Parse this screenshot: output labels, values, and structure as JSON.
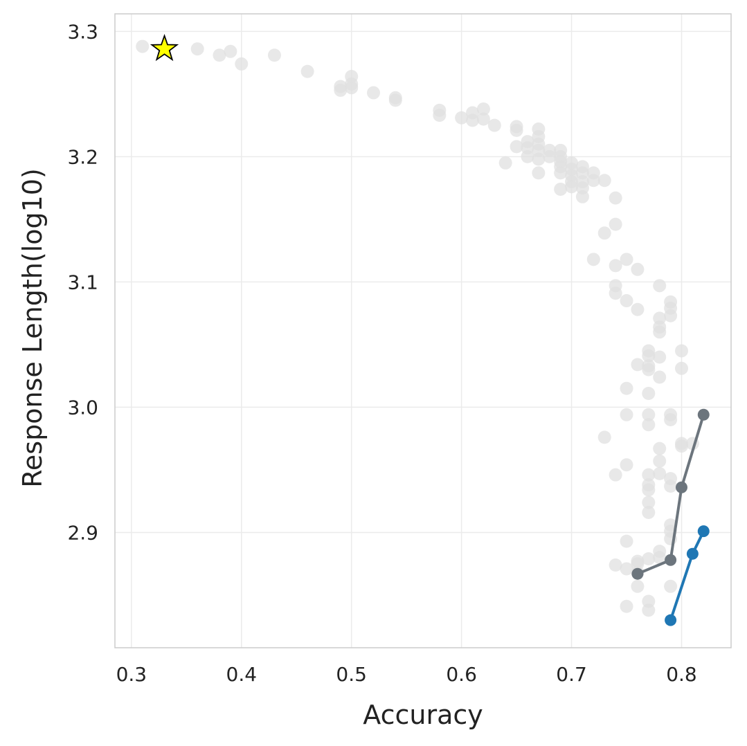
{
  "chart_data": {
    "type": "scatter",
    "title": "",
    "xlabel": "Accuracy",
    "ylabel": "Response Length(log10)",
    "xlim": [
      0.285,
      0.845
    ],
    "ylim": [
      2.808,
      3.314
    ],
    "xticks": [
      0.3,
      0.4,
      0.5,
      0.6,
      0.7,
      0.8
    ],
    "yticks": [
      2.9,
      3.0,
      3.1,
      3.2,
      3.3
    ],
    "xtick_labels": [
      "0.3",
      "0.4",
      "0.5",
      "0.6",
      "0.7",
      "0.8"
    ],
    "ytick_labels": [
      "2.9",
      "3.0",
      "3.1",
      "3.2",
      "3.3"
    ],
    "grid": true,
    "legend": "none",
    "background_points": {
      "color": "#e0e0e0",
      "points": [
        [
          0.31,
          3.288
        ],
        [
          0.36,
          3.286
        ],
        [
          0.38,
          3.281
        ],
        [
          0.39,
          3.284
        ],
        [
          0.4,
          3.274
        ],
        [
          0.43,
          3.281
        ],
        [
          0.46,
          3.268
        ],
        [
          0.49,
          3.256
        ],
        [
          0.49,
          3.253
        ],
        [
          0.5,
          3.264
        ],
        [
          0.5,
          3.255
        ],
        [
          0.5,
          3.258
        ],
        [
          0.52,
          3.251
        ],
        [
          0.54,
          3.247
        ],
        [
          0.54,
          3.245
        ],
        [
          0.58,
          3.237
        ],
        [
          0.58,
          3.233
        ],
        [
          0.6,
          3.231
        ],
        [
          0.61,
          3.235
        ],
        [
          0.61,
          3.229
        ],
        [
          0.62,
          3.238
        ],
        [
          0.62,
          3.23
        ],
        [
          0.63,
          3.225
        ],
        [
          0.65,
          3.224
        ],
        [
          0.65,
          3.221
        ],
        [
          0.65,
          3.208
        ],
        [
          0.66,
          3.212
        ],
        [
          0.66,
          3.207
        ],
        [
          0.66,
          3.2
        ],
        [
          0.67,
          3.222
        ],
        [
          0.67,
          3.216
        ],
        [
          0.67,
          3.21
        ],
        [
          0.67,
          3.205
        ],
        [
          0.67,
          3.198
        ],
        [
          0.67,
          3.187
        ],
        [
          0.68,
          3.205
        ],
        [
          0.68,
          3.2
        ],
        [
          0.69,
          3.205
        ],
        [
          0.69,
          3.2
        ],
        [
          0.69,
          3.196
        ],
        [
          0.69,
          3.192
        ],
        [
          0.69,
          3.187
        ],
        [
          0.69,
          3.174
        ],
        [
          0.7,
          3.195
        ],
        [
          0.7,
          3.19
        ],
        [
          0.7,
          3.185
        ],
        [
          0.7,
          3.18
        ],
        [
          0.7,
          3.176
        ],
        [
          0.71,
          3.192
        ],
        [
          0.71,
          3.187
        ],
        [
          0.71,
          3.18
        ],
        [
          0.71,
          3.175
        ],
        [
          0.71,
          3.168
        ],
        [
          0.72,
          3.187
        ],
        [
          0.72,
          3.181
        ],
        [
          0.73,
          3.181
        ],
        [
          0.64,
          3.195
        ],
        [
          0.74,
          3.167
        ],
        [
          0.74,
          3.146
        ],
        [
          0.73,
          3.139
        ],
        [
          0.72,
          3.118
        ],
        [
          0.75,
          3.118
        ],
        [
          0.74,
          3.113
        ],
        [
          0.76,
          3.11
        ],
        [
          0.74,
          3.097
        ],
        [
          0.74,
          3.091
        ],
        [
          0.75,
          3.085
        ],
        [
          0.76,
          3.078
        ],
        [
          0.78,
          3.097
        ],
        [
          0.78,
          3.071
        ],
        [
          0.78,
          3.064
        ],
        [
          0.78,
          3.06
        ],
        [
          0.79,
          3.084
        ],
        [
          0.79,
          3.079
        ],
        [
          0.79,
          3.073
        ],
        [
          0.77,
          3.045
        ],
        [
          0.77,
          3.041
        ],
        [
          0.77,
          3.033
        ],
        [
          0.77,
          3.03
        ],
        [
          0.76,
          3.034
        ],
        [
          0.78,
          3.04
        ],
        [
          0.78,
          3.024
        ],
        [
          0.8,
          3.045
        ],
        [
          0.8,
          3.031
        ],
        [
          0.75,
          3.015
        ],
        [
          0.77,
          3.011
        ],
        [
          0.75,
          2.994
        ],
        [
          0.77,
          2.994
        ],
        [
          0.77,
          2.986
        ],
        [
          0.79,
          2.994
        ],
        [
          0.79,
          2.99
        ],
        [
          0.73,
          2.976
        ],
        [
          0.8,
          2.971
        ],
        [
          0.8,
          2.969
        ],
        [
          0.81,
          2.971
        ],
        [
          0.78,
          2.967
        ],
        [
          0.78,
          2.957
        ],
        [
          0.75,
          2.954
        ],
        [
          0.74,
          2.946
        ],
        [
          0.77,
          2.946
        ],
        [
          0.78,
          2.947
        ],
        [
          0.79,
          2.943
        ],
        [
          0.79,
          2.937
        ],
        [
          0.77,
          2.938
        ],
        [
          0.77,
          2.934
        ],
        [
          0.77,
          2.924
        ],
        [
          0.77,
          2.916
        ],
        [
          0.79,
          2.906
        ],
        [
          0.79,
          2.901
        ],
        [
          0.79,
          2.895
        ],
        [
          0.75,
          2.893
        ],
        [
          0.78,
          2.885
        ],
        [
          0.78,
          2.88
        ],
        [
          0.77,
          2.879
        ],
        [
          0.76,
          2.877
        ],
        [
          0.76,
          2.875
        ],
        [
          0.74,
          2.874
        ],
        [
          0.75,
          2.871
        ],
        [
          0.76,
          2.868
        ],
        [
          0.76,
          2.857
        ],
        [
          0.79,
          2.857
        ],
        [
          0.77,
          2.845
        ],
        [
          0.77,
          2.838
        ],
        [
          0.75,
          2.841
        ]
      ]
    },
    "series": [
      {
        "color": "#6c757d",
        "x": [
          0.76,
          0.79,
          0.8,
          0.82
        ],
        "y": [
          2.867,
          2.878,
          2.936,
          2.994
        ]
      },
      {
        "color": "#1f77b4",
        "x": [
          0.79,
          0.81,
          0.82
        ],
        "y": [
          2.83,
          2.883,
          2.901
        ]
      }
    ],
    "highlight": {
      "marker": "star",
      "color": "#ffff00",
      "edge_color": "#000000",
      "x": 0.33,
      "y": 3.286
    },
    "grid_color": "#ebebeb",
    "frame_color": "#cccccc"
  }
}
